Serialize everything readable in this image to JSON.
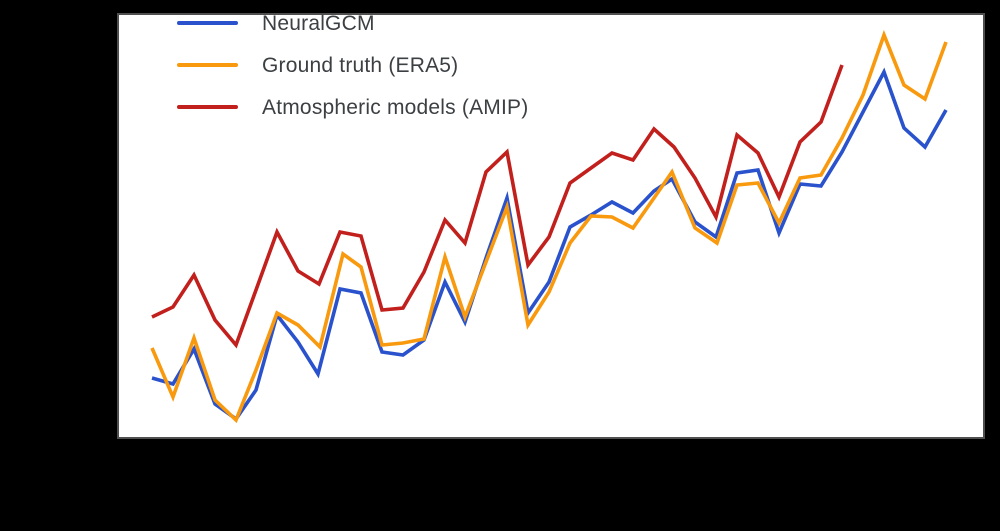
{
  "window": {
    "background_color": "#000000"
  },
  "plot": {
    "background_color": "#ffffff",
    "border_color": "#4f4f4f"
  },
  "legend": {
    "items": [
      {
        "id": "neuralgcm",
        "label": "NeuralGCM",
        "color": "#2952cc"
      },
      {
        "id": "era5",
        "label": "Ground truth (ERA5)",
        "color": "#f8990e"
      },
      {
        "id": "amip",
        "label": "Atmospheric models (AMIP)",
        "color": "#c1201d"
      }
    ]
  },
  "chart_data": {
    "type": "line",
    "legend_position": "upper left",
    "grid": false,
    "axes": {
      "tick_labels_visible": false
    },
    "coordinate_space": {
      "units": "image_px",
      "x_range": [
        117,
        985
      ],
      "y_range_top_down": [
        13,
        439
      ]
    },
    "series": [
      {
        "id": "neuralgcm",
        "name": "NeuralGCM",
        "color": "#2952cc",
        "points": [
          [
            152,
            378
          ],
          [
            173,
            384
          ],
          [
            194,
            349
          ],
          [
            215,
            404
          ],
          [
            236,
            419
          ],
          [
            256,
            390
          ],
          [
            277,
            315
          ],
          [
            298,
            342
          ],
          [
            318,
            374
          ],
          [
            340,
            289
          ],
          [
            361,
            293
          ],
          [
            382,
            352
          ],
          [
            403,
            355
          ],
          [
            424,
            340
          ],
          [
            445,
            282
          ],
          [
            465,
            322
          ],
          [
            486,
            258
          ],
          [
            507,
            198
          ],
          [
            528,
            313
          ],
          [
            549,
            282
          ],
          [
            570,
            227
          ],
          [
            591,
            215
          ],
          [
            612,
            202
          ],
          [
            633,
            213
          ],
          [
            654,
            191
          ],
          [
            672,
            179
          ],
          [
            695,
            222
          ],
          [
            716,
            237
          ],
          [
            737,
            173
          ],
          [
            758,
            170
          ],
          [
            779,
            233
          ],
          [
            800,
            184
          ],
          [
            821,
            186
          ],
          [
            842,
            152
          ],
          [
            863,
            112
          ],
          [
            884,
            72
          ],
          [
            904,
            128
          ],
          [
            925,
            147
          ],
          [
            946,
            110
          ]
        ]
      },
      {
        "id": "era5",
        "name": "Ground truth (ERA5)",
        "color": "#f8990e",
        "points": [
          [
            152,
            348
          ],
          [
            173,
            397
          ],
          [
            194,
            338
          ],
          [
            215,
            400
          ],
          [
            236,
            420
          ],
          [
            256,
            370
          ],
          [
            277,
            313
          ],
          [
            298,
            325
          ],
          [
            320,
            347
          ],
          [
            343,
            254
          ],
          [
            361,
            267
          ],
          [
            382,
            345
          ],
          [
            403,
            343
          ],
          [
            424,
            339
          ],
          [
            445,
            257
          ],
          [
            465,
            317
          ],
          [
            486,
            262
          ],
          [
            507,
            207
          ],
          [
            528,
            325
          ],
          [
            549,
            292
          ],
          [
            570,
            243
          ],
          [
            591,
            216
          ],
          [
            612,
            217
          ],
          [
            633,
            228
          ],
          [
            654,
            198
          ],
          [
            672,
            172
          ],
          [
            695,
            228
          ],
          [
            717,
            243
          ],
          [
            737,
            185
          ],
          [
            758,
            183
          ],
          [
            779,
            223
          ],
          [
            800,
            178
          ],
          [
            821,
            175
          ],
          [
            842,
            138
          ],
          [
            863,
            95
          ],
          [
            884,
            35
          ],
          [
            904,
            85
          ],
          [
            925,
            99
          ],
          [
            946,
            42
          ]
        ]
      },
      {
        "id": "amip",
        "name": "Atmospheric models (AMIP)",
        "color": "#c1201d",
        "points": [
          [
            152,
            317
          ],
          [
            173,
            307
          ],
          [
            194,
            275
          ],
          [
            215,
            320
          ],
          [
            236,
            345
          ],
          [
            256,
            290
          ],
          [
            277,
            232
          ],
          [
            298,
            271
          ],
          [
            319,
            284
          ],
          [
            340,
            232
          ],
          [
            361,
            236
          ],
          [
            382,
            310
          ],
          [
            403,
            308
          ],
          [
            424,
            272
          ],
          [
            445,
            220
          ],
          [
            465,
            243
          ],
          [
            486,
            172
          ],
          [
            507,
            152
          ],
          [
            528,
            265
          ],
          [
            549,
            237
          ],
          [
            570,
            183
          ],
          [
            591,
            168
          ],
          [
            612,
            153
          ],
          [
            633,
            160
          ],
          [
            654,
            129
          ],
          [
            674,
            147
          ],
          [
            695,
            178
          ],
          [
            716,
            217
          ],
          [
            737,
            135
          ],
          [
            758,
            153
          ],
          [
            779,
            197
          ],
          [
            800,
            142
          ],
          [
            821,
            122
          ],
          [
            842,
            65
          ]
        ]
      }
    ]
  }
}
